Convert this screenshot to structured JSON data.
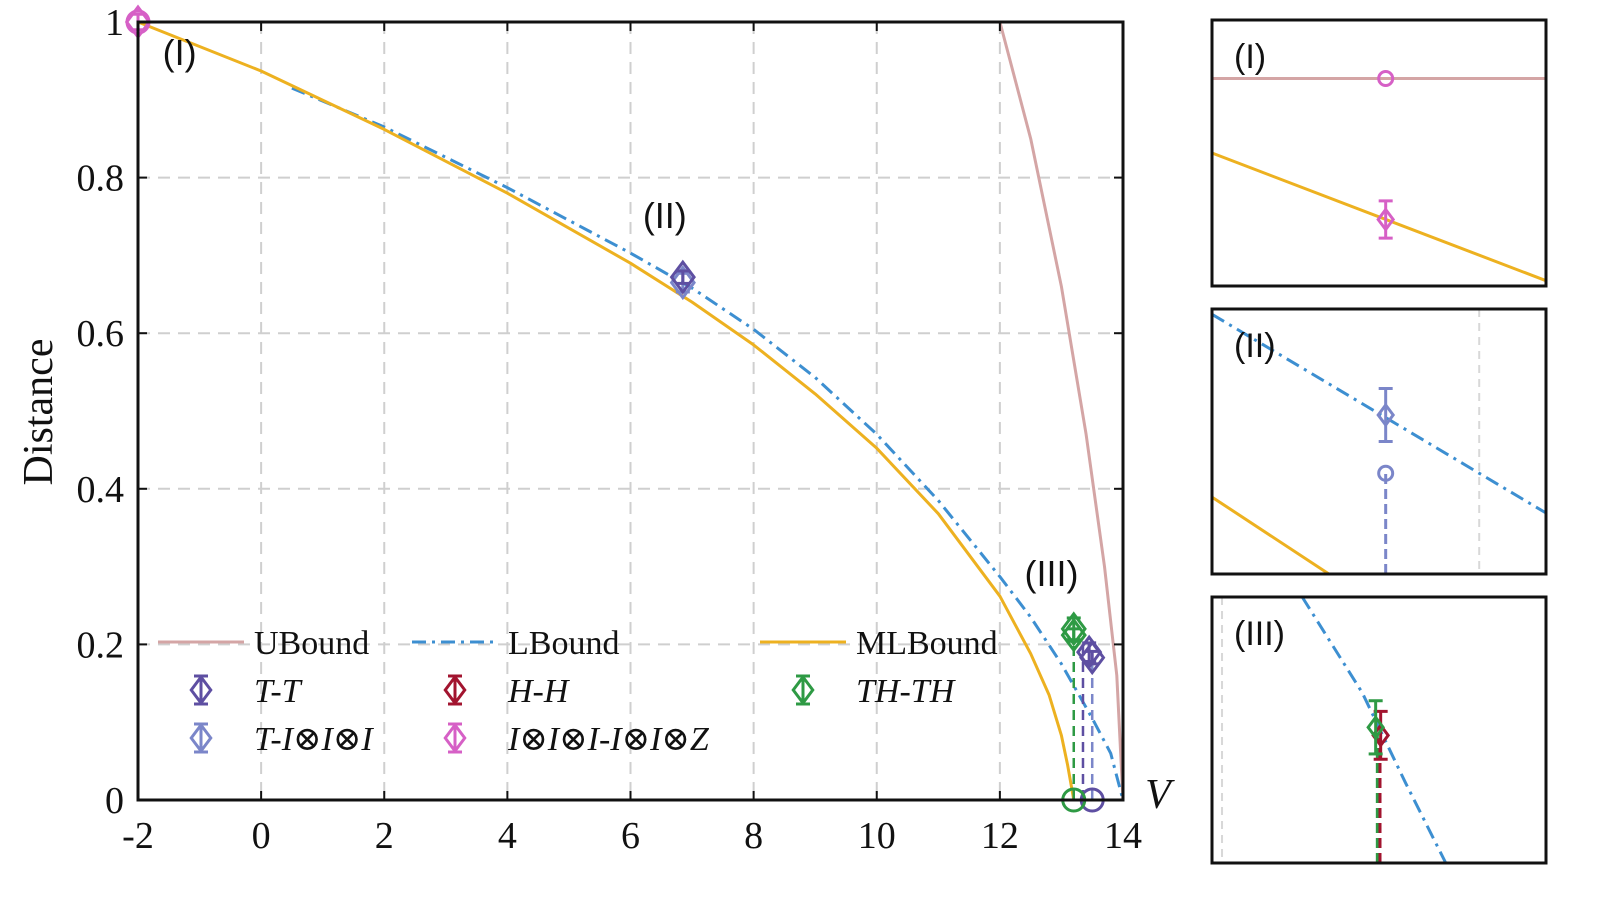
{
  "chart_data": [
    {
      "type": "line",
      "name": "main-plot",
      "xlabel": "V",
      "ylabel": "Distance",
      "xlim": [
        -2,
        14
      ],
      "ylim": [
        0,
        1
      ],
      "x_ticks": [
        "-2",
        "0",
        "2",
        "4",
        "6",
        "8",
        "10",
        "12",
        "14"
      ],
      "y_ticks": [
        "0",
        "0.2",
        "0.4",
        "0.6",
        "0.8",
        "1"
      ],
      "x_tick_values": [
        -2,
        0,
        2,
        4,
        6,
        8,
        10,
        12,
        14
      ],
      "y_tick_values": [
        0,
        0.2,
        0.4,
        0.6,
        0.8,
        1
      ],
      "grid": true,
      "colors": {
        "ubound": "#d4a5a5",
        "lbound": "#3d8fd1",
        "mlbound": "#edb120",
        "tt": "#5e4fa2",
        "ti": "#7b86c9",
        "hh": "#a2142f",
        "ii": "#d660c6",
        "thth": "#2e9a44"
      },
      "series": [
        {
          "name": "UBound",
          "style": "solid",
          "x": [
            -2,
            12,
            12.5,
            13,
            13.4,
            13.7,
            13.9,
            14
          ],
          "y": [
            1,
            1,
            0.85,
            0.66,
            0.47,
            0.3,
            0.16,
            0
          ]
        },
        {
          "name": "LBound",
          "style": "dashdot",
          "x": [
            0.5,
            2,
            4,
            6,
            7,
            8,
            9,
            10,
            11,
            12,
            12.5,
            13,
            13.5,
            13.8,
            14
          ],
          "y": [
            0.915,
            0.865,
            0.787,
            0.703,
            0.658,
            0.605,
            0.543,
            0.47,
            0.385,
            0.287,
            0.235,
            0.175,
            0.105,
            0.06,
            0
          ]
        },
        {
          "name": "MLBound",
          "style": "solid",
          "x": [
            -2,
            0,
            2,
            4,
            6,
            7,
            8,
            9,
            10,
            11,
            12,
            12.5,
            12.8,
            13,
            13.1,
            13.2,
            14
          ],
          "y": [
            1,
            0.937,
            0.862,
            0.78,
            0.69,
            0.64,
            0.585,
            0.522,
            0.452,
            0.368,
            0.262,
            0.188,
            0.135,
            0.083,
            0.045,
            0,
            0
          ]
        }
      ],
      "markers": [
        {
          "name": "T-T",
          "x": 13.45,
          "y": 0.19,
          "err": 0.012,
          "shape": "diamond",
          "color_key": "tt"
        },
        {
          "name": "T-T-shadow",
          "x": 13.5,
          "y": 0.183,
          "err": 0.008,
          "shape": "diamond",
          "color_key": "tt"
        },
        {
          "name": "T-I⊗I⊗I",
          "x": 6.85,
          "y": 0.665,
          "err": 0.012,
          "shape": "diamond",
          "color_key": "ti"
        },
        {
          "name": "T-I⊗I⊗I-upper",
          "x": 6.85,
          "y": 0.672,
          "err": 0.008,
          "shape": "diamond",
          "color_key": "tt"
        },
        {
          "name": "TH-TH",
          "x": 13.2,
          "y": 0.22,
          "err": 0.014,
          "shape": "diamond",
          "color_key": "thth"
        },
        {
          "name": "TH-TH-lower",
          "x": 13.2,
          "y": 0.212,
          "err": 0.008,
          "shape": "diamond",
          "color_key": "thth"
        },
        {
          "name": "I⊗I⊗I-I⊗I⊗Z",
          "x": -2,
          "y": 1,
          "err": 0.01,
          "shape": "diamond",
          "color_key": "ii"
        },
        {
          "name": "circle-ii",
          "x": -2,
          "y": 1,
          "shape": "circle",
          "color_key": "ii"
        },
        {
          "name": "circle-tt",
          "x": 13.5,
          "y": 0,
          "shape": "circle",
          "color_key": "tt"
        },
        {
          "name": "circle-thth",
          "x": 13.2,
          "y": 0,
          "shape": "circle",
          "color_key": "thth"
        }
      ],
      "drop_lines": [
        {
          "x": 13.2,
          "y0": 0,
          "y1": 0.2,
          "color_key": "thth"
        },
        {
          "x": 13.35,
          "y0": 0,
          "y1": 0.2,
          "color_key": "tt"
        },
        {
          "x": 13.5,
          "y0": 0,
          "y1": 0.18,
          "color_key": "ti"
        }
      ],
      "annotations": [
        {
          "text": "(I)",
          "x": -1.6,
          "y": 0.945
        },
        {
          "text": "(II)",
          "x": 6.2,
          "y": 0.735
        },
        {
          "text": "(III)",
          "x": 12.4,
          "y": 0.275
        }
      ],
      "legend": {
        "placement": "bottom",
        "entries": [
          {
            "label": "UBound",
            "kind": "line",
            "color_key": "ubound",
            "style": "solid"
          },
          {
            "label": "LBound",
            "kind": "line",
            "color_key": "lbound",
            "style": "dashdot"
          },
          {
            "label": "MLBound",
            "kind": "line",
            "color_key": "mlbound",
            "style": "solid"
          },
          {
            "label": "T-T",
            "kind": "marker",
            "color_key": "tt"
          },
          {
            "label": "H-H",
            "kind": "marker",
            "color_key": "hh"
          },
          {
            "label": "TH-TH",
            "kind": "marker",
            "color_key": "thth"
          },
          {
            "label": "T-I⊗I⊗I",
            "kind": "marker",
            "color_key": "ti"
          },
          {
            "label": "I⊗I⊗I-I⊗I⊗Z",
            "kind": "marker",
            "color_key": "ii"
          }
        ]
      }
    },
    {
      "type": "line",
      "name": "inset-I",
      "annotation": "(I)",
      "xlim": [
        0,
        1
      ],
      "ylim": [
        0,
        1
      ],
      "series": [
        {
          "name": "UBound",
          "style": "solid",
          "color_key": "ubound",
          "x": [
            0,
            1
          ],
          "y": [
            0.78,
            0.78
          ]
        },
        {
          "name": "MLBound",
          "style": "solid",
          "color_key": "mlbound",
          "x": [
            0,
            1
          ],
          "y": [
            0.5,
            0.02
          ]
        }
      ],
      "markers": [
        {
          "name": "circle-ii",
          "x": 0.52,
          "y": 0.78,
          "shape": "circle",
          "color_key": "ii"
        },
        {
          "name": "I⊗I⊗I-I⊗I⊗Z",
          "x": 0.52,
          "y": 0.25,
          "err": 0.07,
          "shape": "diamond",
          "color_key": "ii"
        }
      ]
    },
    {
      "type": "line",
      "name": "inset-II",
      "annotation": "(II)",
      "xlim": [
        0,
        1
      ],
      "ylim": [
        0,
        1
      ],
      "grid_x": [
        0.8
      ],
      "series": [
        {
          "name": "LBound",
          "style": "dashdot",
          "color_key": "lbound",
          "x": [
            0,
            1
          ],
          "y": [
            0.98,
            0.23
          ]
        },
        {
          "name": "MLBound",
          "style": "solid",
          "color_key": "mlbound",
          "x": [
            0,
            0.35
          ],
          "y": [
            0.29,
            0
          ]
        }
      ],
      "markers": [
        {
          "name": "T-I⊗I⊗I",
          "x": 0.52,
          "y": 0.6,
          "err": 0.1,
          "shape": "diamond",
          "color_key": "ti"
        },
        {
          "name": "circle-ti",
          "x": 0.52,
          "y": 0.38,
          "shape": "circle",
          "color_key": "ti"
        }
      ],
      "drop_lines": [
        {
          "x": 0.52,
          "y0": 0,
          "y1": 0.38,
          "color_key": "ti"
        }
      ]
    },
    {
      "type": "line",
      "name": "inset-III",
      "annotation": "(III)",
      "xlim": [
        0,
        1
      ],
      "ylim": [
        0,
        1
      ],
      "grid_x": [
        0.03
      ],
      "series": [
        {
          "name": "LBound",
          "style": "dashdot",
          "color_key": "lbound",
          "x": [
            0.27,
            0.45,
            0.58,
            0.7
          ],
          "y": [
            1.0,
            0.64,
            0.3,
            0.0
          ]
        }
      ],
      "markers": [
        {
          "name": "H-H",
          "x": 0.505,
          "y": 0.48,
          "err": 0.09,
          "shape": "diamond",
          "color_key": "hh"
        },
        {
          "name": "TH-TH",
          "x": 0.49,
          "y": 0.51,
          "err": 0.1,
          "shape": "diamond",
          "color_key": "thth"
        }
      ],
      "drop_lines": [
        {
          "x": 0.495,
          "y0": 0,
          "y1": 0.5,
          "color_key": "thth"
        },
        {
          "x": 0.503,
          "y0": 0,
          "y1": 0.47,
          "color_key": "hh"
        }
      ]
    }
  ]
}
